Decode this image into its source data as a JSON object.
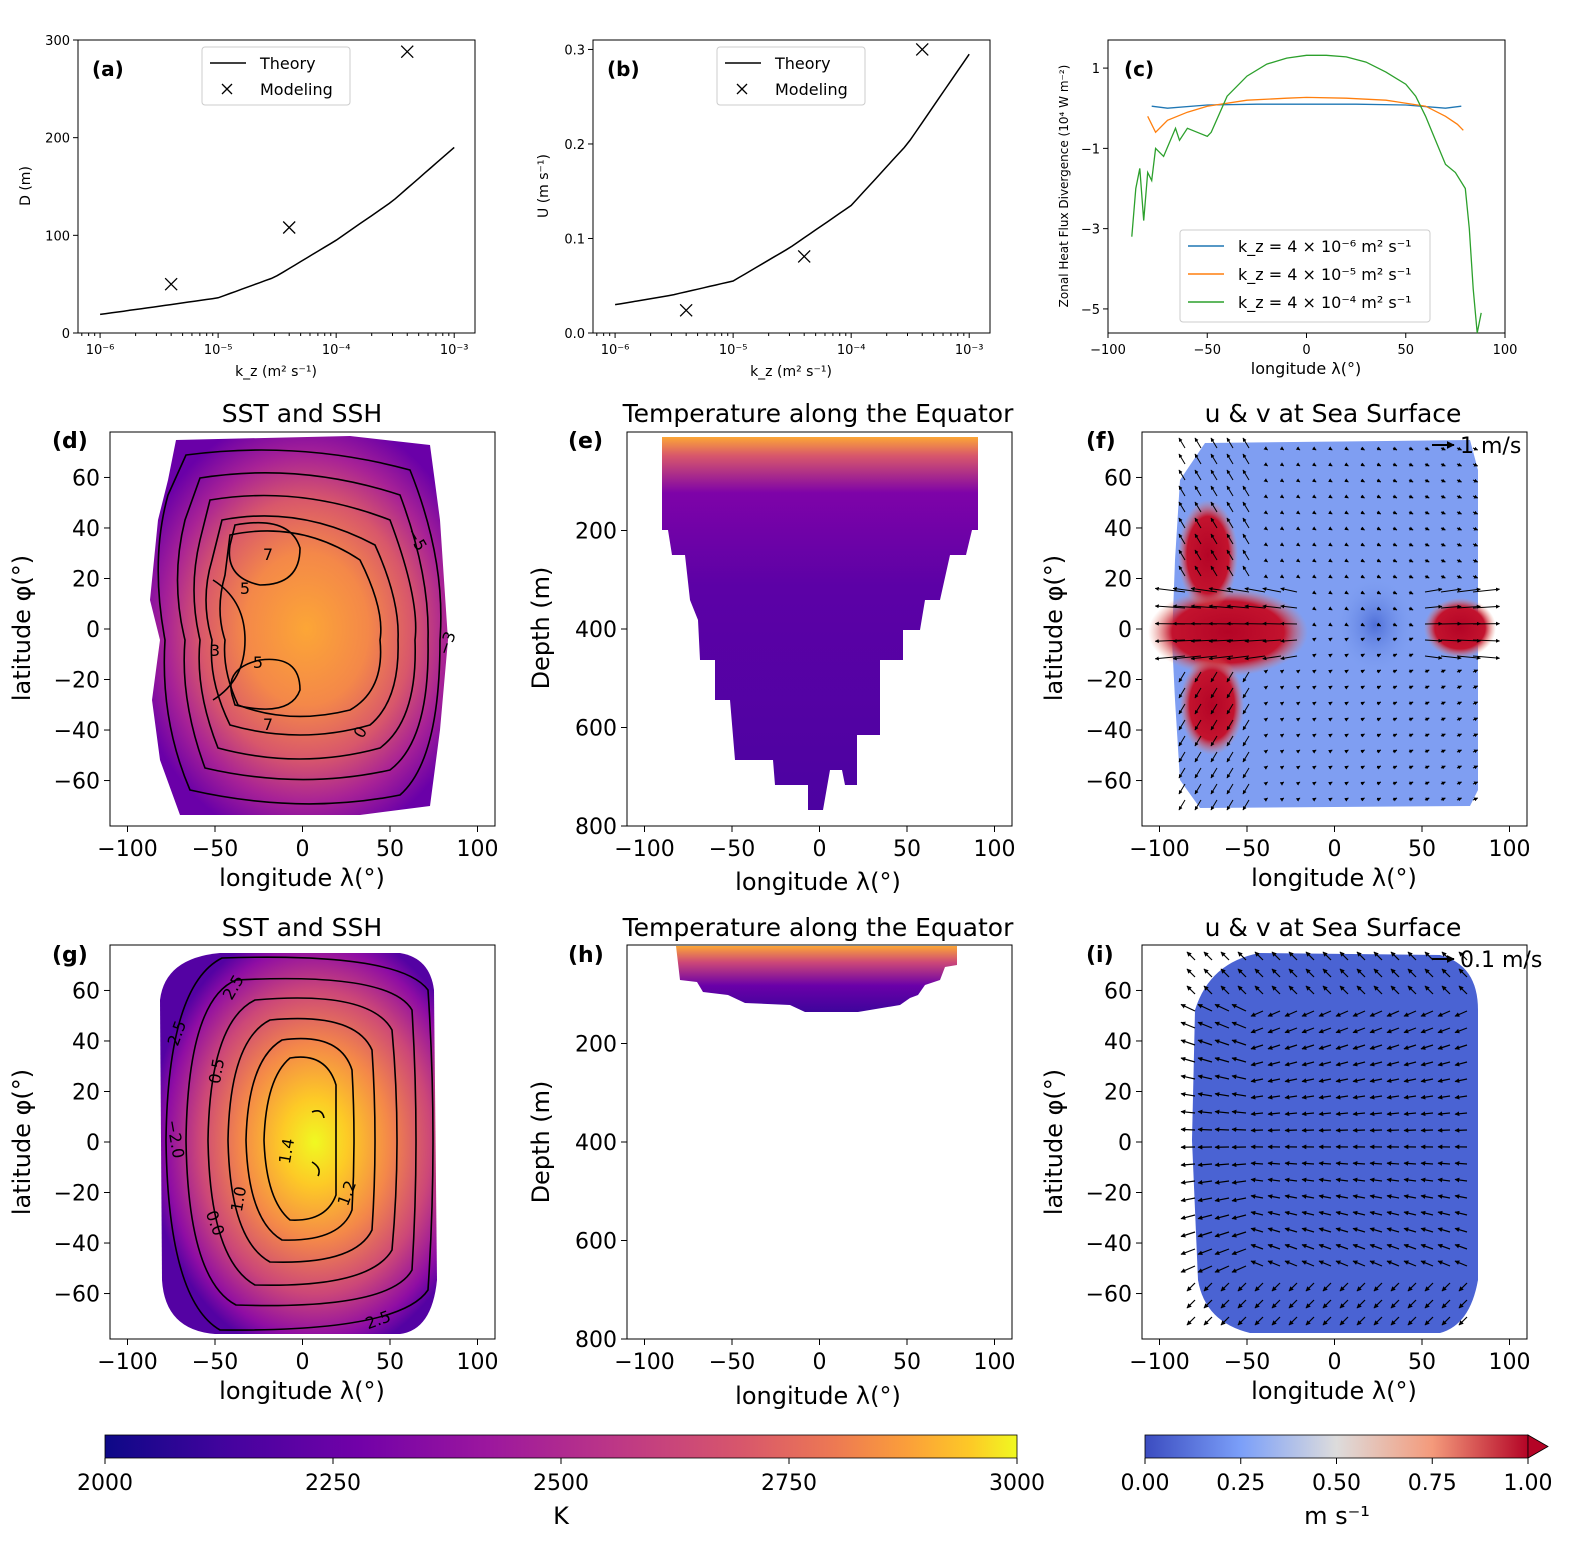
{
  "chart_data": [
    {
      "id": "a",
      "panel_label": "(a)",
      "type": "line",
      "xlabel": "k_z (m² s⁻¹)",
      "ylabel": "D (m)",
      "xscale": "log",
      "xlim": [
        6.5e-07,
        0.0015
      ],
      "ylim": [
        0,
        300
      ],
      "xticks": [
        "10⁻⁶",
        "10⁻⁵",
        "10⁻⁴",
        "10⁻³"
      ],
      "yticks": [
        "0",
        "100",
        "200",
        "300"
      ],
      "legend": [
        "Theory",
        "Modeling"
      ],
      "series": [
        {
          "name": "Theory",
          "style": "line",
          "x": [
            1e-06,
            3e-06,
            1e-05,
            3e-05,
            0.0001,
            0.0003,
            0.001
          ],
          "y": [
            19,
            27,
            36,
            57,
            95,
            135,
            190
          ]
        },
        {
          "name": "Modeling",
          "style": "x",
          "x": [
            4e-06,
            4e-05,
            0.0004
          ],
          "y": [
            50,
            108,
            288
          ]
        }
      ]
    },
    {
      "id": "b",
      "panel_label": "(b)",
      "type": "line",
      "xlabel": "k_z (m² s⁻¹)",
      "ylabel": "U (m s⁻¹)",
      "xscale": "log",
      "xlim": [
        6.5e-07,
        0.0015
      ],
      "ylim": [
        0,
        0.31
      ],
      "xticks": [
        "10⁻⁶",
        "10⁻⁵",
        "10⁻⁴",
        "10⁻³"
      ],
      "yticks": [
        "0.0",
        "0.1",
        "0.2",
        "0.3"
      ],
      "legend": [
        "Theory",
        "Modeling"
      ],
      "series": [
        {
          "name": "Theory",
          "style": "line",
          "x": [
            1e-06,
            3e-06,
            1e-05,
            3e-05,
            0.0001,
            0.0003,
            0.001
          ],
          "y": [
            0.03,
            0.04,
            0.055,
            0.09,
            0.135,
            0.2,
            0.295
          ]
        },
        {
          "name": "Modeling",
          "style": "x",
          "x": [
            4e-06,
            4e-05,
            0.0004
          ],
          "y": [
            0.024,
            0.081,
            0.3
          ]
        }
      ]
    },
    {
      "id": "c",
      "panel_label": "(c)",
      "type": "line",
      "xlabel": "longitude λ(°)",
      "ylabel": "Zonal Heat Flux Divergence (10⁴ W m⁻²)",
      "xlim": [
        -100,
        100
      ],
      "ylim": [
        -5.6,
        1.7
      ],
      "xticks": [
        "−100",
        "−50",
        "0",
        "50",
        "100"
      ],
      "yticks": [
        "1",
        "−1",
        "−3",
        "−5"
      ],
      "legend": [
        "k_z = 4 × 10⁻⁶ m² s⁻¹",
        "k_z = 4 × 10⁻⁵ m² s⁻¹",
        "k_z = 4 × 10⁻⁴ m² s⁻¹"
      ],
      "series": [
        {
          "name": "kz=4e-6",
          "color": "#1f77b4",
          "x": [
            -78,
            -70,
            -50,
            -25,
            0,
            25,
            50,
            70,
            78
          ],
          "y": [
            0.05,
            0.0,
            0.08,
            0.1,
            0.1,
            0.1,
            0.08,
            0.0,
            0.05
          ]
        },
        {
          "name": "kz=4e-5",
          "color": "#ff7f0e",
          "x": [
            -80,
            -76,
            -70,
            -60,
            -50,
            -30,
            -10,
            0,
            20,
            40,
            60,
            70,
            76,
            79
          ],
          "y": [
            -0.2,
            -0.6,
            -0.3,
            -0.1,
            0.05,
            0.2,
            0.25,
            0.27,
            0.25,
            0.2,
            0.05,
            -0.2,
            -0.4,
            -0.55
          ]
        },
        {
          "name": "kz=4e-4",
          "color": "#2ca02c",
          "x": [
            -88,
            -86,
            -84,
            -82,
            -80,
            -78,
            -76,
            -72,
            -66,
            -64,
            -60,
            -55,
            -50,
            -48,
            -40,
            -30,
            -20,
            -10,
            0,
            10,
            20,
            30,
            40,
            50,
            55,
            60,
            65,
            70,
            75,
            80,
            82,
            84,
            86,
            88
          ],
          "y": [
            -3.2,
            -2.0,
            -1.5,
            -2.8,
            -1.6,
            -1.8,
            -1.0,
            -1.2,
            -0.5,
            -0.8,
            -0.5,
            -0.6,
            -0.7,
            -0.6,
            0.3,
            0.8,
            1.1,
            1.25,
            1.32,
            1.32,
            1.28,
            1.15,
            0.9,
            0.6,
            0.3,
            -0.2,
            -0.8,
            -1.4,
            -1.6,
            -2.0,
            -3.0,
            -4.5,
            -5.6,
            -5.1
          ]
        }
      ]
    },
    {
      "id": "d",
      "panel_label": "(d)",
      "type": "heatmap",
      "title": "SST and SSH",
      "xlabel": "longitude λ(°)",
      "ylabel": "latitude φ(°)",
      "xlim": [
        -110,
        110
      ],
      "ylim": [
        -78,
        78
      ],
      "xticks": [
        "−100",
        "−50",
        "0",
        "50",
        "100"
      ],
      "yticks": [
        "60",
        "40",
        "20",
        "0",
        "−20",
        "−40",
        "−60"
      ],
      "contour_labels": [
        "7",
        "5",
        "−5",
        "3",
        "5",
        "−3",
        "7",
        "0"
      ]
    },
    {
      "id": "e",
      "panel_label": "(e)",
      "type": "heatmap",
      "title": "Temperature along the Equator",
      "xlabel": "longitude λ(°)",
      "ylabel": "Depth (m)",
      "xlim": [
        -110,
        110
      ],
      "ylim": [
        800,
        0
      ],
      "xticks": [
        "−100",
        "−50",
        "0",
        "50",
        "100"
      ],
      "yticks": [
        "200",
        "400",
        "600",
        "800"
      ]
    },
    {
      "id": "f",
      "panel_label": "(f)",
      "type": "heatmap",
      "title": "u & v at Sea Surface",
      "xlabel": "longitude λ(°)",
      "ylabel": "latitude φ(°)",
      "xlim": [
        -110,
        110
      ],
      "ylim": [
        -78,
        78
      ],
      "xticks": [
        "−100",
        "−50",
        "0",
        "50",
        "100"
      ],
      "yticks": [
        "60",
        "40",
        "20",
        "0",
        "−20",
        "−40",
        "−60"
      ],
      "quiver_key": "1 m/s"
    },
    {
      "id": "g",
      "panel_label": "(g)",
      "type": "heatmap",
      "title": "SST and SSH",
      "xlabel": "longitude λ(°)",
      "ylabel": "latitude φ(°)",
      "xlim": [
        -110,
        110
      ],
      "ylim": [
        -78,
        78
      ],
      "xticks": [
        "−100",
        "−50",
        "0",
        "50",
        "100"
      ],
      "yticks": [
        "60",
        "40",
        "20",
        "0",
        "−20",
        "−40",
        "−60"
      ],
      "contour_labels": [
        "2.5",
        "2.5",
        "0.5",
        "−2.0",
        "1.4",
        "1.0",
        "1.2",
        "0.0",
        "2.5"
      ]
    },
    {
      "id": "h",
      "panel_label": "(h)",
      "type": "heatmap",
      "title": "Temperature along the Equator",
      "xlabel": "longitude λ(°)",
      "ylabel": "Depth (m)",
      "xlim": [
        -110,
        110
      ],
      "ylim": [
        800,
        0
      ],
      "xticks": [
        "−100",
        "−50",
        "0",
        "50",
        "100"
      ],
      "yticks": [
        "200",
        "400",
        "600",
        "800"
      ]
    },
    {
      "id": "i",
      "panel_label": "(i)",
      "type": "heatmap",
      "title": "u & v at Sea Surface",
      "xlabel": "longitude λ(°)",
      "ylabel": "latitude φ(°)",
      "xlim": [
        -110,
        110
      ],
      "ylim": [
        -78,
        78
      ],
      "xticks": [
        "−100",
        "−50",
        "0",
        "50",
        "100"
      ],
      "yticks": [
        "60",
        "40",
        "20",
        "0",
        "−20",
        "−40",
        "−60"
      ],
      "quiver_key": "0.1 m/s"
    }
  ],
  "colorbars": {
    "temperature": {
      "label": "K",
      "range": [
        2000,
        3000
      ],
      "ticks": [
        "2000",
        "2250",
        "2500",
        "2750",
        "3000"
      ],
      "cmap": "plasma"
    },
    "speed": {
      "label": "m s⁻¹",
      "range": [
        0,
        1
      ],
      "ticks": [
        "0.00",
        "0.25",
        "0.50",
        "0.75",
        "1.00"
      ],
      "cmap": "coolwarm"
    }
  }
}
